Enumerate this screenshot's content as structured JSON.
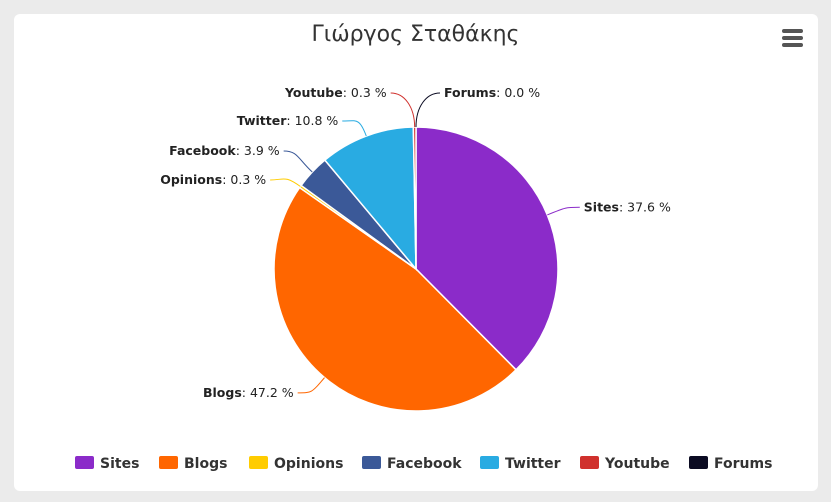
{
  "chart_data": {
    "type": "pie",
    "title": "Γιώργος Σταθάκης",
    "slices": [
      {
        "name": "Sites",
        "value": 37.6,
        "label": "37.6 %",
        "color": "#8b2bc9"
      },
      {
        "name": "Blogs",
        "value": 47.2,
        "label": "47.2 %",
        "color": "#ff6600"
      },
      {
        "name": "Opinions",
        "value": 0.3,
        "label": "0.3 %",
        "color": "#ffcc00"
      },
      {
        "name": "Facebook",
        "value": 3.9,
        "label": "3.9 %",
        "color": "#3b5998"
      },
      {
        "name": "Twitter",
        "value": 10.8,
        "label": "10.8 %",
        "color": "#29abe2"
      },
      {
        "name": "Youtube",
        "value": 0.3,
        "label": "0.3 %",
        "color": "#d0312d"
      },
      {
        "name": "Forums",
        "value": 0.0,
        "label": "0.0 %",
        "color": "#0b0b22"
      }
    ],
    "legend_position": "bottom",
    "menu_icon": "hamburger-menu-icon"
  }
}
